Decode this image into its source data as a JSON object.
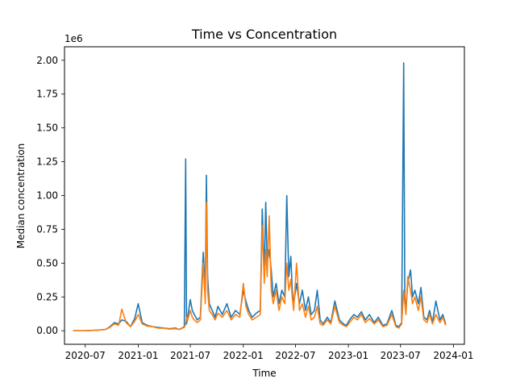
{
  "chart_data": {
    "type": "line",
    "title": "Time vs Concentration",
    "xlabel": "Time",
    "ylabel": "Median concentration",
    "y_offset_label": "1e6",
    "x_ticks": [
      "2020-07",
      "2021-01",
      "2021-07",
      "2022-01",
      "2022-07",
      "2023-01",
      "2023-07",
      "2024-01"
    ],
    "x_tick_dates": [
      "2020-07-01",
      "2021-01-01",
      "2021-07-01",
      "2022-01-01",
      "2022-07-01",
      "2023-01-01",
      "2023-07-01",
      "2024-01-01"
    ],
    "y_ticks": [
      "0.00",
      "0.25",
      "0.50",
      "0.75",
      "1.00",
      "1.25",
      "1.50",
      "1.75",
      "2.00"
    ],
    "y_tick_values": [
      0,
      0.25,
      0.5,
      0.75,
      1.0,
      1.25,
      1.5,
      1.75,
      2.0
    ],
    "xlim": [
      "2020-04-20",
      "2024-02-08"
    ],
    "ylim": [
      -0.1,
      2.1
    ],
    "y_scale_multiplier": 1000000,
    "grid": false,
    "legend": "none",
    "series": [
      {
        "color": "#1f77b4",
        "x": [
          "2020-05-20",
          "2020-07-01",
          "2020-08-15",
          "2020-09-10",
          "2020-09-25",
          "2020-10-10",
          "2020-10-25",
          "2020-11-05",
          "2020-11-20",
          "2020-12-05",
          "2020-12-20",
          "2021-01-01",
          "2021-01-15",
          "2021-02-01",
          "2021-02-20",
          "2021-03-10",
          "2021-04-01",
          "2021-04-20",
          "2021-05-10",
          "2021-05-25",
          "2021-06-10",
          "2021-06-15",
          "2021-06-18",
          "2021-06-22",
          "2021-07-01",
          "2021-07-08",
          "2021-07-15",
          "2021-07-25",
          "2021-08-05",
          "2021-08-15",
          "2021-08-22",
          "2021-08-26",
          "2021-08-30",
          "2021-09-05",
          "2021-09-15",
          "2021-09-25",
          "2021-10-05",
          "2021-10-20",
          "2021-11-05",
          "2021-11-20",
          "2021-12-05",
          "2021-12-20",
          "2022-01-01",
          "2022-01-10",
          "2022-01-20",
          "2022-02-01",
          "2022-02-15",
          "2022-03-01",
          "2022-03-08",
          "2022-03-15",
          "2022-03-20",
          "2022-03-25",
          "2022-04-01",
          "2022-04-08",
          "2022-04-15",
          "2022-04-25",
          "2022-05-05",
          "2022-05-15",
          "2022-05-25",
          "2022-06-01",
          "2022-06-08",
          "2022-06-15",
          "2022-06-20",
          "2022-06-25",
          "2022-07-05",
          "2022-07-15",
          "2022-07-25",
          "2022-08-05",
          "2022-08-15",
          "2022-08-25",
          "2022-09-05",
          "2022-09-15",
          "2022-09-25",
          "2022-10-05",
          "2022-10-20",
          "2022-11-01",
          "2022-11-15",
          "2022-12-01",
          "2022-12-15",
          "2022-12-25",
          "2023-01-05",
          "2023-01-20",
          "2023-02-01",
          "2023-02-15",
          "2023-03-01",
          "2023-03-15",
          "2023-04-01",
          "2023-04-15",
          "2023-05-01",
          "2023-05-15",
          "2023-06-01",
          "2023-06-15",
          "2023-06-25",
          "2023-07-05",
          "2023-07-12",
          "2023-07-16",
          "2023-07-20",
          "2023-07-26",
          "2023-08-05",
          "2023-08-12",
          "2023-08-20",
          "2023-09-01",
          "2023-09-10",
          "2023-09-20",
          "2023-10-01",
          "2023-10-10",
          "2023-10-20",
          "2023-11-01",
          "2023-11-15",
          "2023-11-25",
          "2023-12-05"
        ],
        "y": [
          0.0,
          0.0,
          0.005,
          0.01,
          0.03,
          0.06,
          0.05,
          0.08,
          0.07,
          0.03,
          0.09,
          0.2,
          0.06,
          0.04,
          0.03,
          0.025,
          0.02,
          0.015,
          0.02,
          0.01,
          0.03,
          1.27,
          0.05,
          0.1,
          0.23,
          0.15,
          0.12,
          0.08,
          0.1,
          0.58,
          0.3,
          1.15,
          0.4,
          0.2,
          0.15,
          0.1,
          0.18,
          0.12,
          0.2,
          0.1,
          0.15,
          0.12,
          0.3,
          0.22,
          0.15,
          0.1,
          0.13,
          0.15,
          0.9,
          0.4,
          0.95,
          0.5,
          0.6,
          0.45,
          0.25,
          0.35,
          0.2,
          0.3,
          0.25,
          1.0,
          0.4,
          0.55,
          0.3,
          0.2,
          0.35,
          0.2,
          0.3,
          0.15,
          0.25,
          0.12,
          0.15,
          0.3,
          0.08,
          0.05,
          0.1,
          0.06,
          0.22,
          0.08,
          0.05,
          0.04,
          0.08,
          0.12,
          0.1,
          0.14,
          0.08,
          0.12,
          0.06,
          0.1,
          0.04,
          0.05,
          0.15,
          0.04,
          0.03,
          0.06,
          1.98,
          0.25,
          0.15,
          0.35,
          0.45,
          0.25,
          0.3,
          0.2,
          0.32,
          0.1,
          0.08,
          0.15,
          0.06,
          0.22,
          0.08,
          0.12,
          0.05
        ]
      },
      {
        "color": "#ff7f0e",
        "x": [
          "2020-05-20",
          "2020-07-01",
          "2020-08-15",
          "2020-09-10",
          "2020-09-25",
          "2020-10-10",
          "2020-10-25",
          "2020-11-05",
          "2020-11-20",
          "2020-12-05",
          "2020-12-20",
          "2021-01-01",
          "2021-01-15",
          "2021-02-01",
          "2021-02-20",
          "2021-03-10",
          "2021-04-01",
          "2021-04-20",
          "2021-05-10",
          "2021-05-25",
          "2021-06-10",
          "2021-06-15",
          "2021-06-18",
          "2021-06-22",
          "2021-07-01",
          "2021-07-08",
          "2021-07-15",
          "2021-07-25",
          "2021-08-05",
          "2021-08-15",
          "2021-08-22",
          "2021-08-26",
          "2021-08-30",
          "2021-09-05",
          "2021-09-15",
          "2021-09-25",
          "2021-10-05",
          "2021-10-20",
          "2021-11-05",
          "2021-11-20",
          "2021-12-05",
          "2021-12-20",
          "2022-01-01",
          "2022-01-10",
          "2022-01-20",
          "2022-02-01",
          "2022-02-15",
          "2022-03-01",
          "2022-03-08",
          "2022-03-15",
          "2022-03-20",
          "2022-03-25",
          "2022-04-01",
          "2022-04-08",
          "2022-04-15",
          "2022-04-25",
          "2022-05-05",
          "2022-05-15",
          "2022-05-25",
          "2022-06-01",
          "2022-06-08",
          "2022-06-15",
          "2022-06-20",
          "2022-06-25",
          "2022-07-05",
          "2022-07-15",
          "2022-07-25",
          "2022-08-05",
          "2022-08-15",
          "2022-08-25",
          "2022-09-05",
          "2022-09-15",
          "2022-09-25",
          "2022-10-05",
          "2022-10-20",
          "2022-11-01",
          "2022-11-15",
          "2022-12-01",
          "2022-12-15",
          "2022-12-25",
          "2023-01-05",
          "2023-01-20",
          "2023-02-01",
          "2023-02-15",
          "2023-03-01",
          "2023-03-15",
          "2023-04-01",
          "2023-04-15",
          "2023-05-01",
          "2023-05-15",
          "2023-06-01",
          "2023-06-15",
          "2023-06-25",
          "2023-07-05",
          "2023-07-12",
          "2023-07-16",
          "2023-07-20",
          "2023-07-26",
          "2023-08-05",
          "2023-08-12",
          "2023-08-20",
          "2023-09-01",
          "2023-09-10",
          "2023-09-20",
          "2023-10-01",
          "2023-10-10",
          "2023-10-20",
          "2023-11-01",
          "2023-11-15",
          "2023-11-25",
          "2023-12-05"
        ],
        "y": [
          0.0,
          0.0,
          0.005,
          0.01,
          0.025,
          0.05,
          0.04,
          0.16,
          0.06,
          0.03,
          0.07,
          0.12,
          0.05,
          0.035,
          0.03,
          0.02,
          0.018,
          0.012,
          0.015,
          0.01,
          0.025,
          0.05,
          0.1,
          0.08,
          0.15,
          0.1,
          0.08,
          0.06,
          0.08,
          0.5,
          0.2,
          0.95,
          0.3,
          0.15,
          0.12,
          0.08,
          0.13,
          0.1,
          0.15,
          0.08,
          0.12,
          0.1,
          0.35,
          0.18,
          0.12,
          0.08,
          0.1,
          0.12,
          0.78,
          0.35,
          0.6,
          0.4,
          0.85,
          0.3,
          0.2,
          0.3,
          0.15,
          0.25,
          0.2,
          0.5,
          0.3,
          0.38,
          0.25,
          0.15,
          0.5,
          0.15,
          0.2,
          0.1,
          0.18,
          0.08,
          0.1,
          0.18,
          0.05,
          0.04,
          0.08,
          0.05,
          0.18,
          0.06,
          0.04,
          0.03,
          0.06,
          0.1,
          0.08,
          0.12,
          0.06,
          0.09,
          0.05,
          0.08,
          0.03,
          0.04,
          0.12,
          0.03,
          0.02,
          0.05,
          0.3,
          0.2,
          0.12,
          0.4,
          0.3,
          0.2,
          0.25,
          0.15,
          0.25,
          0.08,
          0.06,
          0.12,
          0.05,
          0.12,
          0.06,
          0.1,
          0.04
        ]
      }
    ]
  }
}
